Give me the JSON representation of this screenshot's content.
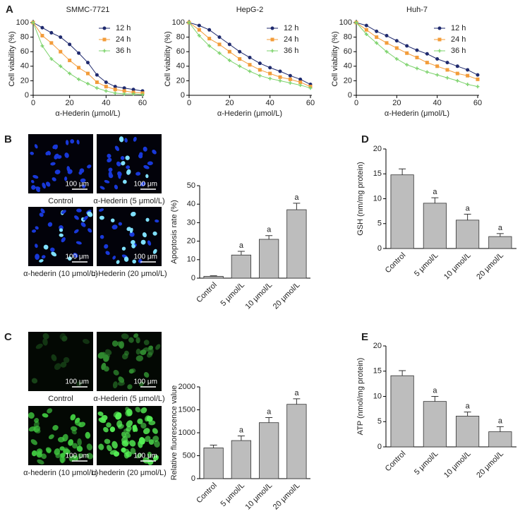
{
  "panel_labels": [
    "A",
    "B",
    "C",
    "D",
    "E"
  ],
  "images": {
    "scale_bar": "100 μm",
    "B": [
      "Control",
      "α-Hederin (5 μmol/L)",
      "α-hederin (10 μmol/L)",
      "α-Hederin (20 μmol/L)"
    ],
    "C": [
      "Control",
      "α-Hederin (5 μmol/L)",
      "α-hederin (10 μmol/L)",
      "α-hederin (20 μmol/L)"
    ]
  },
  "chart_data": [
    {
      "type": "line",
      "title": "SMMC-7721",
      "x_label": "α-Hederin (μmol/L)",
      "y_label": "Cell viability (%)",
      "x": [
        0,
        5,
        10,
        15,
        20,
        25,
        30,
        35,
        40,
        45,
        50,
        55,
        60
      ],
      "xlim": [
        0,
        60
      ],
      "xticks": [
        0,
        20,
        40,
        60
      ],
      "ylim": [
        0,
        100
      ],
      "yticks": [
        0,
        20,
        40,
        60,
        80,
        100
      ],
      "series": [
        {
          "name": "12 h",
          "color": "#1f2a6e",
          "marker": "circle",
          "values": [
            100,
            93,
            86,
            80,
            70,
            58,
            45,
            28,
            18,
            12,
            10,
            8,
            6
          ]
        },
        {
          "name": "24 h",
          "color": "#f39c3a",
          "marker": "square",
          "values": [
            100,
            82,
            72,
            60,
            48,
            38,
            30,
            18,
            12,
            8,
            6,
            4,
            3
          ]
        },
        {
          "name": "36 h",
          "color": "#7ed36e",
          "marker": "cross",
          "values": [
            100,
            68,
            50,
            40,
            30,
            22,
            16,
            10,
            6,
            3,
            2,
            2,
            1
          ]
        }
      ]
    },
    {
      "type": "line",
      "title": "HepG-2",
      "x_label": "α-Hederin (μmol/L)",
      "y_label": "Cell viability (%)",
      "x": [
        0,
        5,
        10,
        15,
        20,
        25,
        30,
        35,
        40,
        45,
        50,
        55,
        60
      ],
      "xlim": [
        0,
        60
      ],
      "xticks": [
        0,
        20,
        40,
        60
      ],
      "ylim": [
        0,
        100
      ],
      "yticks": [
        0,
        20,
        40,
        60,
        80,
        100
      ],
      "series": [
        {
          "name": "12 h",
          "color": "#1f2a6e",
          "marker": "circle",
          "values": [
            100,
            96,
            90,
            80,
            70,
            60,
            52,
            44,
            38,
            33,
            27,
            22,
            15
          ]
        },
        {
          "name": "24 h",
          "color": "#f39c3a",
          "marker": "square",
          "values": [
            100,
            90,
            78,
            70,
            60,
            50,
            42,
            35,
            30,
            25,
            22,
            18,
            12
          ]
        },
        {
          "name": "36 h",
          "color": "#7ed36e",
          "marker": "cross",
          "values": [
            100,
            82,
            68,
            58,
            48,
            40,
            33,
            27,
            23,
            20,
            17,
            14,
            10
          ]
        }
      ]
    },
    {
      "type": "line",
      "title": "Huh-7",
      "x_label": "α-Hederin (μmol/L)",
      "y_label": "Cell viability (%)",
      "x": [
        0,
        5,
        10,
        15,
        20,
        25,
        30,
        35,
        40,
        45,
        50,
        55,
        60
      ],
      "xlim": [
        0,
        60
      ],
      "xticks": [
        0,
        20,
        40,
        60
      ],
      "ylim": [
        0,
        100
      ],
      "yticks": [
        0,
        20,
        40,
        60,
        80,
        100
      ],
      "series": [
        {
          "name": "12 h",
          "color": "#1f2a6e",
          "marker": "circle",
          "values": [
            100,
            96,
            88,
            82,
            75,
            68,
            62,
            57,
            50,
            45,
            40,
            35,
            28
          ]
        },
        {
          "name": "24 h",
          "color": "#f39c3a",
          "marker": "square",
          "values": [
            100,
            90,
            80,
            72,
            65,
            58,
            52,
            45,
            40,
            35,
            30,
            27,
            22
          ]
        },
        {
          "name": "36 h",
          "color": "#7ed36e",
          "marker": "cross",
          "values": [
            100,
            84,
            72,
            60,
            50,
            42,
            37,
            32,
            28,
            24,
            20,
            15,
            12
          ]
        }
      ]
    },
    {
      "type": "bar",
      "y_label": "Apoptosis rate (%)",
      "categories": [
        "Control",
        "5 μmol/L",
        "10 μmol/L",
        "20 μmol/L"
      ],
      "values": [
        1,
        12.5,
        21,
        37
      ],
      "errors": [
        0.3,
        2,
        2,
        3.5
      ],
      "significance": [
        null,
        "a",
        "a",
        "a"
      ],
      "color": "#bdbdbd",
      "ylim": [
        0,
        50
      ],
      "yticks": [
        0,
        10,
        20,
        30,
        40,
        50
      ]
    },
    {
      "type": "bar",
      "y_label": "GSH (nm/mg protein)",
      "categories": [
        "Control",
        "5 μmol/L",
        "10 μmol/L",
        "20 μmol/L"
      ],
      "values": [
        14.8,
        9.1,
        5.7,
        2.4
      ],
      "errors": [
        1.2,
        1.1,
        1.2,
        0.6
      ],
      "significance": [
        null,
        "a",
        "a",
        "a"
      ],
      "color": "#bdbdbd",
      "ylim": [
        0,
        20
      ],
      "yticks": [
        0,
        5,
        10,
        15,
        20
      ]
    },
    {
      "type": "bar",
      "y_label": "Relative fluorescence value",
      "categories": [
        "Control",
        "5 μmol/L",
        "10 μmol/L",
        "20 μmol/L"
      ],
      "values": [
        670,
        830,
        1220,
        1620
      ],
      "errors": [
        60,
        100,
        110,
        120
      ],
      "significance": [
        null,
        "a",
        "a",
        "a"
      ],
      "color": "#bdbdbd",
      "ylim": [
        0,
        2000
      ],
      "yticks": [
        0,
        500,
        1000,
        1500,
        2000
      ]
    },
    {
      "type": "bar",
      "y_label": "ATP (nmol/mg protein)",
      "categories": [
        "Control",
        "5 μmol/L",
        "10 μmol/L",
        "20 μmol/L"
      ],
      "values": [
        14.1,
        9,
        6.1,
        3
      ],
      "errors": [
        1,
        1,
        0.8,
        1
      ],
      "significance": [
        null,
        "a",
        "a",
        "a"
      ],
      "color": "#bdbdbd",
      "ylim": [
        0,
        20
      ],
      "yticks": [
        0,
        5,
        10,
        15,
        20
      ]
    }
  ]
}
